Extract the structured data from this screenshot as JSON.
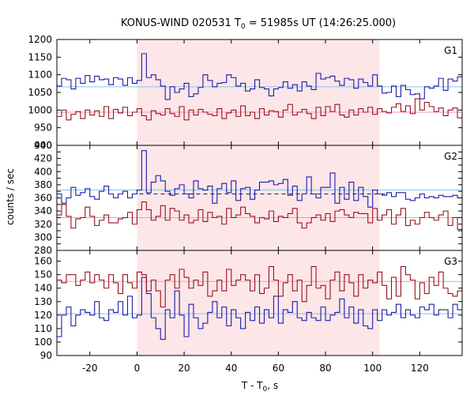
{
  "chart_data": {
    "type": "line",
    "title": "KONUS-WIND 020531 T",
    "title_sub": "0",
    "title_rest": " = 51985s UT (14:26:25.000)",
    "xlabel": "T - T",
    "xlabel_sub": "0",
    "xlabel_rest": ", s",
    "ylabel": "counts / sec",
    "xlim": [
      -34,
      138
    ],
    "x_ticks": [
      -20,
      0,
      20,
      40,
      60,
      80,
      100,
      120
    ],
    "x_tick_labels": [
      "-20",
      "0",
      "20",
      "40",
      "60",
      "80",
      "100",
      "120"
    ],
    "highlight_interval": [
      0,
      103
    ],
    "highlight_color": "#fde6e8",
    "bin_start": -34,
    "bin_width": 2,
    "colors": {
      "blue": "#1c1ca8",
      "red": "#9a1020",
      "bg_blue": "#7fc6ee",
      "bg_red": "#f29ab0"
    },
    "panels": [
      {
        "label": "G1",
        "ylim": [
          900,
          1200
        ],
        "y_ticks": [
          900,
          950,
          1000,
          1050,
          1100,
          1150,
          1200
        ],
        "y_tick_labels": [
          "900",
          "950",
          "1000",
          "1050",
          "1100",
          "1150",
          "1200"
        ],
        "background_levels": [
          {
            "name": "blue-background",
            "value": 1066,
            "color": "bg_blue"
          },
          {
            "name": "red-background",
            "value": 994,
            "color": "bg_red"
          }
        ],
        "series": [
          {
            "color": "blue",
            "values": [
              1068,
              1090,
              1086,
              1060,
              1090,
              1076,
              1098,
              1080,
              1096,
              1086,
              1088,
              1072,
              1092,
              1088,
              1070,
              1092,
              1076,
              1084,
              1160,
              1092,
              1100,
              1086,
              1068,
              1030,
              1066,
              1050,
              1060,
              1076,
              1038,
              1046,
              1064,
              1100,
              1084,
              1066,
              1076,
              1078,
              1100,
              1092,
              1068,
              1076,
              1054,
              1060,
              1086,
              1064,
              1060,
              1040,
              1060,
              1064,
              1080,
              1062,
              1072,
              1054,
              1080,
              1068,
              1058,
              1104,
              1088,
              1092,
              1096,
              1082,
              1070,
              1090,
              1086,
              1062,
              1088,
              1078,
              1068,
              1100,
              1068,
              1048,
              1050,
              1068,
              1038,
              1070,
              1058,
              1044,
              1046,
              1032,
              1066,
              1062,
              1068,
              1090,
              1056,
              1088,
              1082,
              1094
            ]
          },
          {
            "color": "red",
            "values": [
              982,
              1000,
              972,
              988,
              996,
              976,
              1000,
              986,
              998,
              982,
              1010,
              976,
              1002,
              992,
              1008,
              984,
              994,
              1004,
              984,
              972,
              998,
              990,
              986,
              1004,
              990,
              982,
              1010,
              972,
              1000,
              986,
              1002,
              994,
              988,
              984,
              1004,
              976,
              992,
              1000,
              982,
              1012,
              984,
              994,
              976,
              1004,
              986,
              998,
              996,
              980,
              1000,
              1016,
              986,
              994,
              1002,
              990,
              976,
              1008,
              984,
              1010,
              996,
              1016,
              986,
              980,
              1000,
              986,
              1004,
              994,
              1008,
              988,
              1004,
              996,
              992,
              1008,
              1018,
              996,
              1012,
              990,
              1032,
              1000,
              1022,
              1010,
              996,
              1006,
              984,
              1000,
              1006,
              978
            ]
          }
        ]
      },
      {
        "label": "G2",
        "ylim": [
          280,
          440
        ],
        "y_ticks": [
          280,
          290,
          300,
          310,
          320,
          330,
          340,
          350,
          360,
          370,
          380,
          390,
          400,
          410,
          420,
          430,
          440
        ],
        "y_tick_labels": [
          "280",
          "",
          "300",
          "",
          "320",
          "",
          "340",
          "",
          "360",
          "",
          "380",
          "",
          "400",
          "",
          "420",
          "",
          "440"
        ],
        "background_levels": [
          {
            "name": "blue-background",
            "value": 372,
            "color": "bg_blue"
          },
          {
            "name": "red-background",
            "value": 330,
            "color": "bg_red"
          }
        ],
        "dashed_level": {
          "value": 366,
          "x_range": [
            -2,
            106
          ]
        },
        "series": [
          {
            "color": "blue",
            "values": [
              366,
              352,
              360,
              376,
              364,
              368,
              374,
              362,
              358,
              370,
              378,
              366,
              360,
              366,
              370,
              360,
              366,
              372,
              432,
              368,
              384,
              394,
              386,
              370,
              364,
              374,
              380,
              366,
              360,
              386,
              374,
              372,
              378,
              352,
              374,
              382,
              368,
              386,
              356,
              374,
              376,
              358,
              372,
              384,
              384,
              386,
              380,
              382,
              388,
              364,
              378,
              356,
              366,
              392,
              366,
              360,
              376,
              376,
              398,
              352,
              376,
              358,
              384,
              356,
              376,
              362,
              346,
              372,
              366,
              364,
              368,
              362,
              368,
              368,
              358,
              356,
              360,
              366,
              360,
              362,
              360,
              364,
              362,
              362,
              364,
              360
            ]
          },
          {
            "color": "red",
            "values": [
              334,
              350,
              332,
              314,
              328,
              330,
              346,
              332,
              318,
              326,
              334,
              322,
              322,
              328,
              330,
              338,
              320,
              342,
              354,
              342,
              326,
              332,
              348,
              326,
              344,
              340,
              326,
              334,
              322,
              326,
              342,
              324,
              338,
              330,
              332,
              320,
              344,
              330,
              334,
              346,
              336,
              332,
              322,
              330,
              328,
              340,
              324,
              332,
              330,
              336,
              344,
              322,
              314,
              322,
              330,
              334,
              326,
              336,
              324,
              340,
              342,
              334,
              330,
              338,
              336,
              336,
              322,
              344,
              326,
              334,
              342,
              320,
              334,
              344,
              318,
              326,
              320,
              330,
              338,
              330,
              326,
              334,
              340,
              318,
              330,
              312
            ]
          }
        ]
      },
      {
        "label": "G3",
        "ylim": [
          90,
          168
        ],
        "y_ticks": [
          90,
          100,
          110,
          120,
          130,
          140,
          150,
          160
        ],
        "y_tick_labels": [
          "90",
          "100",
          "110",
          "120",
          "130",
          "140",
          "150",
          "160"
        ],
        "background_levels": [
          {
            "name": "blue-background",
            "value": 121,
            "color": "bg_blue"
          },
          {
            "name": "red-background",
            "value": 145,
            "color": "bg_red"
          }
        ],
        "series": [
          {
            "color": "blue",
            "values": [
              104,
              120,
              126,
              112,
              120,
              124,
              122,
              120,
              130,
              118,
              116,
              124,
              122,
              130,
              120,
              134,
              118,
              120,
              148,
              136,
              118,
              110,
              102,
              124,
              118,
              138,
              120,
              104,
              128,
              118,
              110,
              114,
              122,
              130,
              118,
              126,
              112,
              124,
              118,
              110,
              122,
              116,
              126,
              114,
              124,
              118,
              134,
              114,
              124,
              122,
              130,
              118,
              116,
              122,
              118,
              116,
              126,
              116,
              120,
              122,
              132,
              118,
              126,
              114,
              124,
              112,
              110,
              124,
              116,
              124,
              120,
              122,
              128,
              118,
              124,
              120,
              118,
              126,
              124,
              128,
              120,
              124,
              124,
              118,
              128,
              124
            ]
          },
          {
            "color": "red",
            "values": [
              146,
              144,
              150,
              150,
              142,
              146,
              152,
              144,
              150,
              146,
              140,
              150,
              144,
              136,
              150,
              144,
              140,
              152,
              150,
              138,
              146,
              138,
              126,
              146,
              150,
              140,
              154,
              148,
              140,
              146,
              142,
              152,
              134,
              138,
              146,
              138,
              154,
              142,
              146,
              150,
              146,
              138,
              150,
              136,
              140,
              156,
              146,
              134,
              144,
              150,
              138,
              146,
              130,
              142,
              156,
              140,
              142,
              132,
              146,
              152,
              138,
              150,
              144,
              134,
              150,
              140,
              146,
              144,
              152,
              142,
              132,
              148,
              134,
              156,
              150,
              146,
              132,
              144,
              136,
              148,
              142,
              152,
              140,
              136,
              134,
              138
            ]
          }
        ]
      }
    ]
  }
}
